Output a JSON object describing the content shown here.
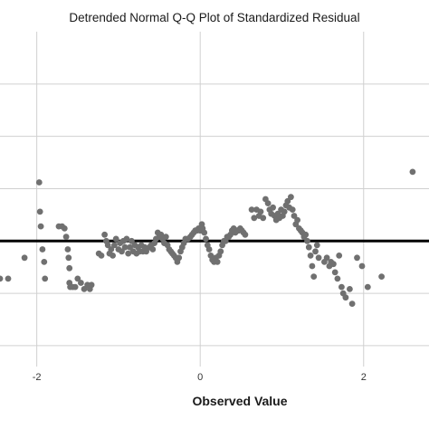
{
  "chart_data": {
    "type": "scatter",
    "title": "Detrended Normal Q-Q Plot of Standardized Residual",
    "xlabel": "Observed Value",
    "ylabel": "",
    "x_ticks": [
      -2,
      0,
      2
    ],
    "x_tick_labels": [
      "-2",
      "0",
      "2"
    ],
    "xlim": [
      -2.45,
      2.8
    ],
    "ylim": [
      -0.6,
      1.0
    ],
    "y_gridlines": [
      -0.5,
      -0.25,
      0.0,
      0.25,
      0.5,
      0.75
    ],
    "reference_line": 0.0,
    "grid": true,
    "colors": {
      "points": "#707070",
      "reference_line": "#000000",
      "grid": "#d0d0d0"
    },
    "points": [
      [
        -2.45,
        -0.18
      ],
      [
        -2.35,
        -0.18
      ],
      [
        -2.15,
        -0.08
      ],
      [
        -1.97,
        0.28
      ],
      [
        -1.96,
        0.14
      ],
      [
        -1.95,
        0.07
      ],
      [
        -1.93,
        -0.04
      ],
      [
        -1.91,
        -0.1
      ],
      [
        -1.9,
        -0.18
      ],
      [
        -1.73,
        0.07
      ],
      [
        -1.69,
        0.07
      ],
      [
        -1.66,
        0.06
      ],
      [
        -1.64,
        0.02
      ],
      [
        -1.62,
        -0.04
      ],
      [
        -1.61,
        -0.08
      ],
      [
        -1.6,
        -0.13
      ],
      [
        -1.6,
        -0.2
      ],
      [
        -1.59,
        -0.22
      ],
      [
        -1.56,
        -0.22
      ],
      [
        -1.53,
        -0.22
      ],
      [
        -1.5,
        -0.18
      ],
      [
        -1.46,
        -0.2
      ],
      [
        -1.42,
        -0.23
      ],
      [
        -1.38,
        -0.21
      ],
      [
        -1.35,
        -0.23
      ],
      [
        -1.33,
        -0.21
      ],
      [
        -1.24,
        -0.06
      ],
      [
        -1.21,
        -0.07
      ],
      [
        -1.17,
        0.03
      ],
      [
        -1.15,
        0.0
      ],
      [
        -1.13,
        -0.02
      ],
      [
        -1.11,
        -0.06
      ],
      [
        -1.09,
        -0.04
      ],
      [
        -1.07,
        -0.07
      ],
      [
        -1.05,
        -0.02
      ],
      [
        -1.03,
        0.01
      ],
      [
        -1.0,
        -0.04
      ],
      [
        -0.98,
        -0.01
      ],
      [
        -0.96,
        -0.05
      ],
      [
        -0.94,
        0.0
      ],
      [
        -0.92,
        -0.03
      ],
      [
        -0.9,
        0.01
      ],
      [
        -0.88,
        -0.06
      ],
      [
        -0.86,
        -0.03
      ],
      [
        -0.84,
        0.0
      ],
      [
        -0.82,
        -0.05
      ],
      [
        -0.8,
        -0.02
      ],
      [
        -0.78,
        -0.06
      ],
      [
        -0.76,
        -0.03
      ],
      [
        -0.74,
        -0.05
      ],
      [
        -0.72,
        -0.02
      ],
      [
        -0.7,
        -0.05
      ],
      [
        -0.68,
        -0.03
      ],
      [
        -0.66,
        -0.05
      ],
      [
        -0.62,
        -0.03
      ],
      [
        -0.6,
        -0.02
      ],
      [
        -0.58,
        -0.04
      ],
      [
        -0.56,
        -0.01
      ],
      [
        -0.54,
        0.01
      ],
      [
        -0.52,
        0.04
      ],
      [
        -0.5,
        0.02
      ],
      [
        -0.48,
        0.03
      ],
      [
        -0.46,
        0.01
      ],
      [
        -0.44,
        -0.01
      ],
      [
        -0.42,
        0.02
      ],
      [
        -0.4,
        -0.02
      ],
      [
        -0.38,
        -0.04
      ],
      [
        -0.36,
        -0.05
      ],
      [
        -0.34,
        -0.06
      ],
      [
        -0.32,
        -0.07
      ],
      [
        -0.3,
        -0.08
      ],
      [
        -0.28,
        -0.1
      ],
      [
        -0.26,
        -0.08
      ],
      [
        -0.24,
        -0.05
      ],
      [
        -0.22,
        -0.03
      ],
      [
        -0.2,
        -0.01
      ],
      [
        -0.18,
        0.01
      ],
      [
        -0.15,
        0.01
      ],
      [
        -0.12,
        0.02
      ],
      [
        -0.1,
        0.03
      ],
      [
        -0.08,
        0.04
      ],
      [
        -0.06,
        0.05
      ],
      [
        -0.04,
        0.05
      ],
      [
        -0.02,
        0.06
      ],
      [
        0.0,
        0.05
      ],
      [
        0.02,
        0.08
      ],
      [
        0.03,
        0.06
      ],
      [
        0.05,
        0.04
      ],
      [
        0.07,
        0.01
      ],
      [
        0.09,
        -0.02
      ],
      [
        0.11,
        -0.04
      ],
      [
        0.13,
        -0.07
      ],
      [
        0.15,
        -0.09
      ],
      [
        0.17,
        -0.1
      ],
      [
        0.19,
        -0.08
      ],
      [
        0.21,
        -0.1
      ],
      [
        0.23,
        -0.07
      ],
      [
        0.25,
        -0.05
      ],
      [
        0.27,
        -0.02
      ],
      [
        0.29,
        0.0
      ],
      [
        0.31,
        0.0
      ],
      [
        0.33,
        0.02
      ],
      [
        0.35,
        0.02
      ],
      [
        0.37,
        0.03
      ],
      [
        0.39,
        0.05
      ],
      [
        0.41,
        0.06
      ],
      [
        0.43,
        0.04
      ],
      [
        0.45,
        0.05
      ],
      [
        0.47,
        0.05
      ],
      [
        0.49,
        0.06
      ],
      [
        0.51,
        0.05
      ],
      [
        0.53,
        0.04
      ],
      [
        0.55,
        0.03
      ],
      [
        0.63,
        0.15
      ],
      [
        0.66,
        0.11
      ],
      [
        0.69,
        0.15
      ],
      [
        0.72,
        0.12
      ],
      [
        0.74,
        0.14
      ],
      [
        0.77,
        0.11
      ],
      [
        0.8,
        0.2
      ],
      [
        0.83,
        0.18
      ],
      [
        0.85,
        0.15
      ],
      [
        0.87,
        0.13
      ],
      [
        0.89,
        0.16
      ],
      [
        0.91,
        0.12
      ],
      [
        0.93,
        0.1
      ],
      [
        0.95,
        0.13
      ],
      [
        0.97,
        0.11
      ],
      [
        0.99,
        0.15
      ],
      [
        1.01,
        0.12
      ],
      [
        1.03,
        0.14
      ],
      [
        1.05,
        0.17
      ],
      [
        1.07,
        0.19
      ],
      [
        1.09,
        0.16
      ],
      [
        1.11,
        0.21
      ],
      [
        1.13,
        0.15
      ],
      [
        1.15,
        0.12
      ],
      [
        1.17,
        0.08
      ],
      [
        1.19,
        0.1
      ],
      [
        1.21,
        0.06
      ],
      [
        1.23,
        0.05
      ],
      [
        1.25,
        0.04
      ],
      [
        1.27,
        0.02
      ],
      [
        1.29,
        0.03
      ],
      [
        1.31,
        0.0
      ],
      [
        1.33,
        -0.03
      ],
      [
        1.35,
        -0.07
      ],
      [
        1.37,
        -0.12
      ],
      [
        1.39,
        -0.17
      ],
      [
        1.41,
        -0.05
      ],
      [
        1.43,
        -0.02
      ],
      [
        1.45,
        -0.08
      ],
      [
        1.52,
        -0.1
      ],
      [
        1.55,
        -0.08
      ],
      [
        1.58,
        -0.12
      ],
      [
        1.6,
        -0.1
      ],
      [
        1.63,
        -0.11
      ],
      [
        1.65,
        -0.15
      ],
      [
        1.68,
        -0.18
      ],
      [
        1.7,
        -0.07
      ],
      [
        1.73,
        -0.22
      ],
      [
        1.75,
        -0.25
      ],
      [
        1.78,
        -0.27
      ],
      [
        1.83,
        -0.23
      ],
      [
        1.86,
        -0.3
      ],
      [
        1.92,
        -0.08
      ],
      [
        1.98,
        -0.12
      ],
      [
        2.05,
        -0.22
      ],
      [
        2.22,
        -0.17
      ],
      [
        2.6,
        0.33
      ]
    ]
  }
}
